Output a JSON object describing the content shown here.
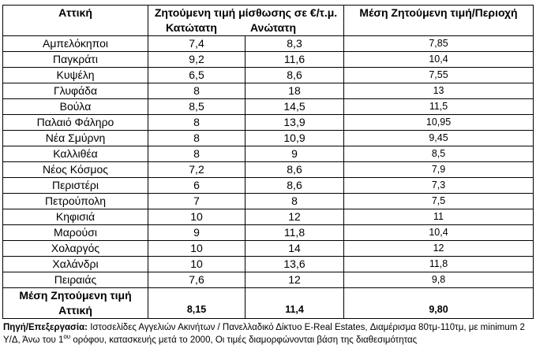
{
  "table": {
    "header": {
      "region": "Αττική",
      "range_title": "Ζητούμενη τιμή μίσθωσης σε €/τ.μ.",
      "min_label": "Κατώτατη",
      "max_label": "Ανώτατη",
      "avg_title": "Μέση Ζητούμενη τιμή/Περιοχή"
    },
    "rows": [
      {
        "area": "Αμπελόκηποι",
        "min": "7,4",
        "max": "8,3",
        "avg": "7,85"
      },
      {
        "area": "Παγκράτι",
        "min": "9,2",
        "max": "11,6",
        "avg": "10,4"
      },
      {
        "area": "Κυψέλη",
        "min": "6,5",
        "max": "8,6",
        "avg": "7,55"
      },
      {
        "area": "Γλυφάδα",
        "min": "8",
        "max": "18",
        "avg": "13"
      },
      {
        "area": "Βούλα",
        "min": "8,5",
        "max": "14,5",
        "avg": "11,5"
      },
      {
        "area": "Παλαιό Φάληρο",
        "min": "8",
        "max": "13,9",
        "avg": "10,95"
      },
      {
        "area": "Νέα Σμύρνη",
        "min": "8",
        "max": "10,9",
        "avg": "9,45"
      },
      {
        "area": "Καλλιθέα",
        "min": "8",
        "max": "9",
        "avg": "8,5"
      },
      {
        "area": "Νέος Κόσμος",
        "min": "7,2",
        "max": "8,6",
        "avg": "7,9"
      },
      {
        "area": "Περιστέρι",
        "min": "6",
        "max": "8,6",
        "avg": "7,3"
      },
      {
        "area": "Πετρούπολη",
        "min": "7",
        "max": "8",
        "avg": "7,5"
      },
      {
        "area": "Κηφισιά",
        "min": "10",
        "max": "12",
        "avg": "11"
      },
      {
        "area": "Μαρούσι",
        "min": "9",
        "max": "11,8",
        "avg": "10,4"
      },
      {
        "area": "Χολαργός",
        "min": "10",
        "max": "14",
        "avg": "12"
      },
      {
        "area": "Χαλάνδρι",
        "min": "10",
        "max": "13,6",
        "avg": "11,8"
      },
      {
        "area": "Πειραιάς",
        "min": "7,6",
        "max": "12",
        "avg": "9,8"
      }
    ],
    "footer": {
      "label_line1": "Μέση Ζητούμενη τιμή",
      "label_line2": "Αττική",
      "min": "8,15",
      "max": "11,4",
      "avg": "9,80"
    }
  },
  "source": {
    "label": "Πηγή/Επεξεργασία:",
    "text_part1": " Ιστοσελίδες Αγγελιών Ακινήτων / Πανελλαδικό Δίκτυο E-Real Estates, Διαμέρισμα 80τμ-110τμ, με minimum  2 Υ/Δ, Άνω του 1",
    "superscript": "ου",
    "text_part2": " ορόφου, κατασκευής μετά το 2000, Οι τιμές διαμορφώνονται βάση της διαθεσιμότητας"
  }
}
